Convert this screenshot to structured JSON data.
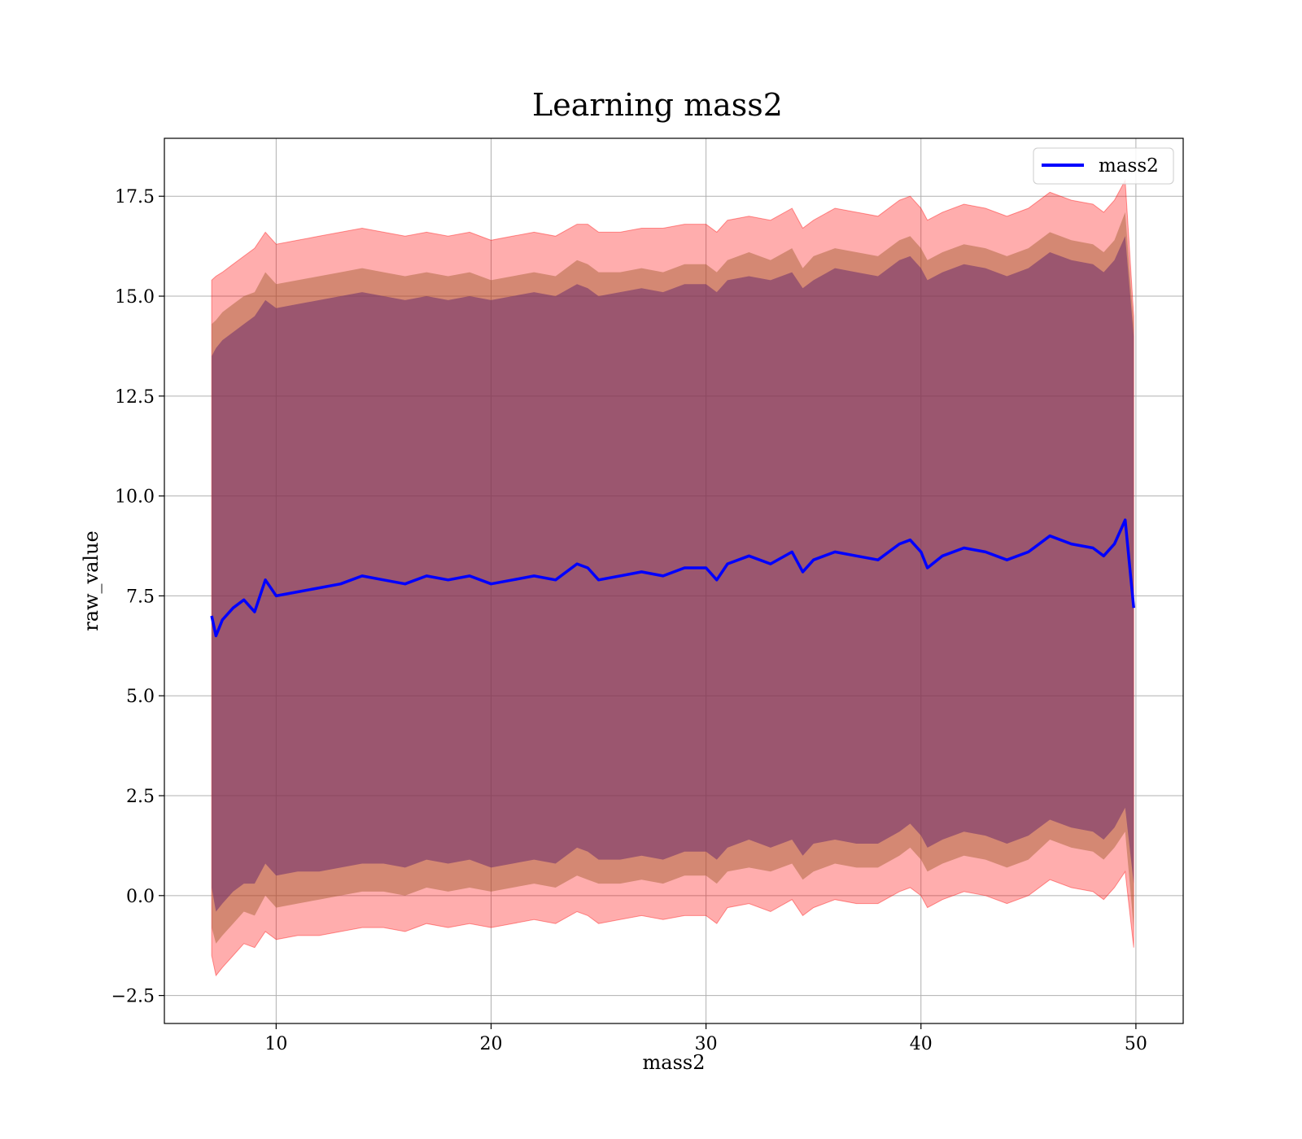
{
  "chart_data": {
    "type": "line",
    "title": "Learning mass2",
    "xlabel": "mass2",
    "ylabel": "raw_value",
    "xlim": [
      4.8,
      52.2
    ],
    "ylim": [
      -3.2,
      18.95
    ],
    "xticks": [
      10,
      20,
      30,
      40,
      50
    ],
    "xtick_labels": [
      "10",
      "20",
      "30",
      "40",
      "50"
    ],
    "yticks": [
      -2.5,
      0.0,
      2.5,
      5.0,
      7.5,
      10.0,
      12.5,
      15.0,
      17.5
    ],
    "ytick_labels": [
      "−2.5",
      "0.0",
      "2.5",
      "5.0",
      "7.5",
      "10.0",
      "12.5",
      "15.0",
      "17.5"
    ],
    "grid": true,
    "legend": {
      "placement": "top-right",
      "entries": [
        "mass2"
      ]
    },
    "colors": {
      "line": "#0000ff",
      "band_outer": "#ff0000",
      "band_middle": "#a05a2c",
      "band_inner": "#6b2d6b",
      "grid": "#b0b0b0"
    },
    "series": [
      {
        "name": "mass2",
        "x": [
          7.0,
          7.2,
          7.5,
          8.0,
          8.5,
          9.0,
          9.5,
          10.0,
          11.0,
          12.0,
          13.0,
          14.0,
          15.0,
          16.0,
          17.0,
          18.0,
          19.0,
          20.0,
          21.0,
          22.0,
          23.0,
          24.0,
          24.5,
          25.0,
          26.0,
          27.0,
          28.0,
          29.0,
          30.0,
          30.5,
          31.0,
          32.0,
          33.0,
          34.0,
          34.5,
          35.0,
          36.0,
          37.0,
          38.0,
          39.0,
          39.5,
          40.0,
          40.3,
          41.0,
          42.0,
          43.0,
          44.0,
          45.0,
          46.0,
          47.0,
          48.0,
          48.5,
          49.0,
          49.5,
          49.9
        ],
        "y": [
          7.0,
          6.5,
          6.9,
          7.2,
          7.4,
          7.1,
          7.9,
          7.5,
          7.6,
          7.7,
          7.8,
          8.0,
          7.9,
          7.8,
          8.0,
          7.9,
          8.0,
          7.8,
          7.9,
          8.0,
          7.9,
          8.3,
          8.2,
          7.9,
          8.0,
          8.1,
          8.0,
          8.2,
          8.2,
          7.9,
          8.3,
          8.5,
          8.3,
          8.6,
          8.1,
          8.4,
          8.6,
          8.5,
          8.4,
          8.8,
          8.9,
          8.6,
          8.2,
          8.5,
          8.7,
          8.6,
          8.4,
          8.6,
          9.0,
          8.8,
          8.7,
          8.5,
          8.8,
          9.4,
          7.2
        ],
        "band_outer_upper": [
          15.4,
          15.5,
          15.6,
          15.8,
          16.0,
          16.2,
          16.6,
          16.3,
          16.4,
          16.5,
          16.6,
          16.7,
          16.6,
          16.5,
          16.6,
          16.5,
          16.6,
          16.4,
          16.5,
          16.6,
          16.5,
          16.8,
          16.8,
          16.6,
          16.6,
          16.7,
          16.7,
          16.8,
          16.8,
          16.6,
          16.9,
          17.0,
          16.9,
          17.2,
          16.7,
          16.9,
          17.2,
          17.1,
          17.0,
          17.4,
          17.5,
          17.2,
          16.9,
          17.1,
          17.3,
          17.2,
          17.0,
          17.2,
          17.6,
          17.4,
          17.3,
          17.1,
          17.4,
          17.9,
          14.5
        ],
        "band_outer_lower": [
          -1.5,
          -2.0,
          -1.8,
          -1.5,
          -1.2,
          -1.3,
          -0.9,
          -1.1,
          -1.0,
          -1.0,
          -0.9,
          -0.8,
          -0.8,
          -0.9,
          -0.7,
          -0.8,
          -0.7,
          -0.8,
          -0.7,
          -0.6,
          -0.7,
          -0.4,
          -0.5,
          -0.7,
          -0.6,
          -0.5,
          -0.6,
          -0.5,
          -0.5,
          -0.7,
          -0.3,
          -0.2,
          -0.4,
          -0.1,
          -0.5,
          -0.3,
          -0.1,
          -0.2,
          -0.2,
          0.1,
          0.2,
          0.0,
          -0.3,
          -0.1,
          0.1,
          0.0,
          -0.2,
          0.0,
          0.4,
          0.2,
          0.1,
          -0.1,
          0.2,
          0.6,
          -1.3
        ],
        "band_middle_upper": [
          14.3,
          14.4,
          14.6,
          14.8,
          15.0,
          15.1,
          15.6,
          15.3,
          15.4,
          15.5,
          15.6,
          15.7,
          15.6,
          15.5,
          15.6,
          15.5,
          15.6,
          15.4,
          15.5,
          15.6,
          15.5,
          15.9,
          15.8,
          15.6,
          15.6,
          15.7,
          15.6,
          15.8,
          15.8,
          15.6,
          15.9,
          16.1,
          15.9,
          16.2,
          15.7,
          16.0,
          16.2,
          16.1,
          16.0,
          16.4,
          16.5,
          16.2,
          15.9,
          16.1,
          16.3,
          16.2,
          16.0,
          16.2,
          16.6,
          16.4,
          16.3,
          16.1,
          16.4,
          17.1,
          14.3
        ],
        "band_middle_lower": [
          -0.8,
          -1.2,
          -1.0,
          -0.7,
          -0.4,
          -0.5,
          0.0,
          -0.3,
          -0.2,
          -0.1,
          0.0,
          0.1,
          0.1,
          0.0,
          0.2,
          0.1,
          0.2,
          0.1,
          0.2,
          0.3,
          0.2,
          0.5,
          0.4,
          0.3,
          0.3,
          0.4,
          0.3,
          0.5,
          0.5,
          0.3,
          0.6,
          0.7,
          0.6,
          0.8,
          0.4,
          0.6,
          0.8,
          0.7,
          0.7,
          1.0,
          1.2,
          0.9,
          0.6,
          0.8,
          1.0,
          0.9,
          0.7,
          0.9,
          1.4,
          1.2,
          1.1,
          0.9,
          1.2,
          1.6,
          -0.8
        ],
        "band_inner_upper": [
          13.5,
          13.7,
          13.9,
          14.1,
          14.3,
          14.5,
          14.9,
          14.7,
          14.8,
          14.9,
          15.0,
          15.1,
          15.0,
          14.9,
          15.0,
          14.9,
          15.0,
          14.9,
          15.0,
          15.1,
          15.0,
          15.3,
          15.2,
          15.0,
          15.1,
          15.2,
          15.1,
          15.3,
          15.3,
          15.1,
          15.4,
          15.5,
          15.4,
          15.6,
          15.2,
          15.4,
          15.7,
          15.6,
          15.5,
          15.9,
          16.0,
          15.7,
          15.4,
          15.6,
          15.8,
          15.7,
          15.5,
          15.7,
          16.1,
          15.9,
          15.8,
          15.6,
          15.9,
          16.5,
          14.0
        ],
        "band_inner_lower": [
          0.2,
          -0.4,
          -0.2,
          0.1,
          0.3,
          0.3,
          0.8,
          0.5,
          0.6,
          0.6,
          0.7,
          0.8,
          0.8,
          0.7,
          0.9,
          0.8,
          0.9,
          0.7,
          0.8,
          0.9,
          0.8,
          1.2,
          1.1,
          0.9,
          0.9,
          1.0,
          0.9,
          1.1,
          1.1,
          0.9,
          1.2,
          1.4,
          1.2,
          1.4,
          1.0,
          1.3,
          1.4,
          1.3,
          1.3,
          1.6,
          1.8,
          1.5,
          1.2,
          1.4,
          1.6,
          1.5,
          1.3,
          1.5,
          1.9,
          1.7,
          1.6,
          1.4,
          1.7,
          2.2,
          0.3
        ]
      }
    ]
  }
}
